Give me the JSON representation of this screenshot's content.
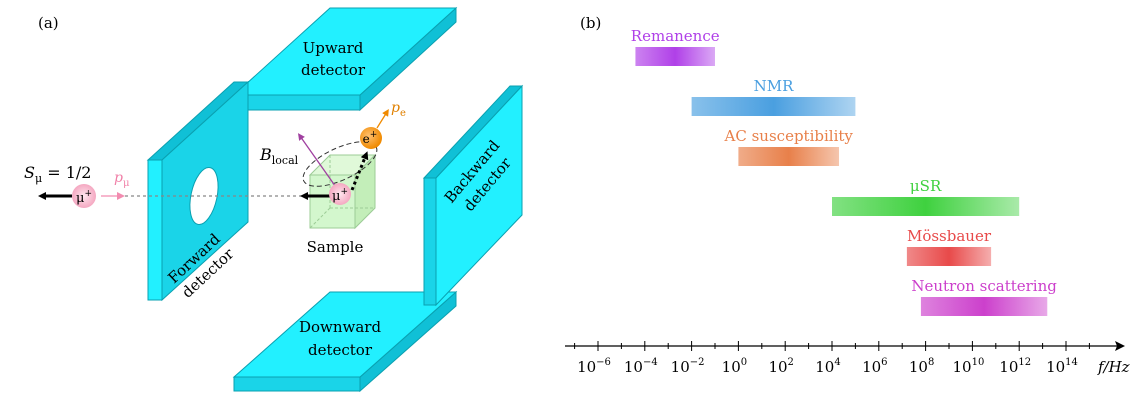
{
  "panel_a": {
    "label": "(a)",
    "detectors": {
      "upward": [
        "Upward",
        "detector"
      ],
      "downward": [
        "Downward",
        "detector"
      ],
      "forward": [
        "Forward",
        "detector"
      ],
      "backward": [
        "Backward",
        "detector"
      ]
    },
    "sample_label": "Sample",
    "spin_label": "S",
    "spin_sub": "μ",
    "spin_value": " = 1/2",
    "muon_momentum": "p",
    "muon_momentum_sub": "μ",
    "positron_momentum": "p",
    "positron_momentum_sub": "e",
    "field_label": "B",
    "field_sub": "local",
    "muon_symbol": "μ",
    "positron_symbol": "e",
    "charge_sign": "+"
  },
  "panel_b": {
    "label": "(b)",
    "axis_label": "f/Hz",
    "tick_labels": [
      {
        "base": "10",
        "exp": "−6"
      },
      {
        "base": "10",
        "exp": "−4"
      },
      {
        "base": "10",
        "exp": "−2"
      },
      {
        "base": "10",
        "exp": "0"
      },
      {
        "base": "10",
        "exp": "2"
      },
      {
        "base": "10",
        "exp": "4"
      },
      {
        "base": "10",
        "exp": "6"
      },
      {
        "base": "10",
        "exp": "8"
      },
      {
        "base": "10",
        "exp": "10"
      },
      {
        "base": "10",
        "exp": "12"
      },
      {
        "base": "10",
        "exp": "14"
      }
    ],
    "chart_data": {
      "type": "bar",
      "orientation": "horizontal-range",
      "x_scale": "log",
      "xlabel": "f/Hz",
      "xlim_log10": [
        -7,
        16
      ],
      "ranges": [
        {
          "name": "Remanence",
          "log10_min": -4.4,
          "log10_max": -1.0,
          "color": "#b040e8"
        },
        {
          "name": "NMR",
          "log10_min": -2.0,
          "log10_max": 5.0,
          "color": "#4a9fe0"
        },
        {
          "name": "AC susceptibility",
          "log10_min": 0.0,
          "log10_max": 4.3,
          "color": "#e8804a"
        },
        {
          "name": "μSR",
          "log10_min": 4.0,
          "log10_max": 12.0,
          "color": "#3fd13f"
        },
        {
          "name": "Mössbauer",
          "log10_min": 7.2,
          "log10_max": 10.8,
          "color": "#e84a4a"
        },
        {
          "name": "Neutron scattering",
          "log10_min": 7.8,
          "log10_max": 13.2,
          "color": "#cc40cc"
        }
      ]
    }
  }
}
